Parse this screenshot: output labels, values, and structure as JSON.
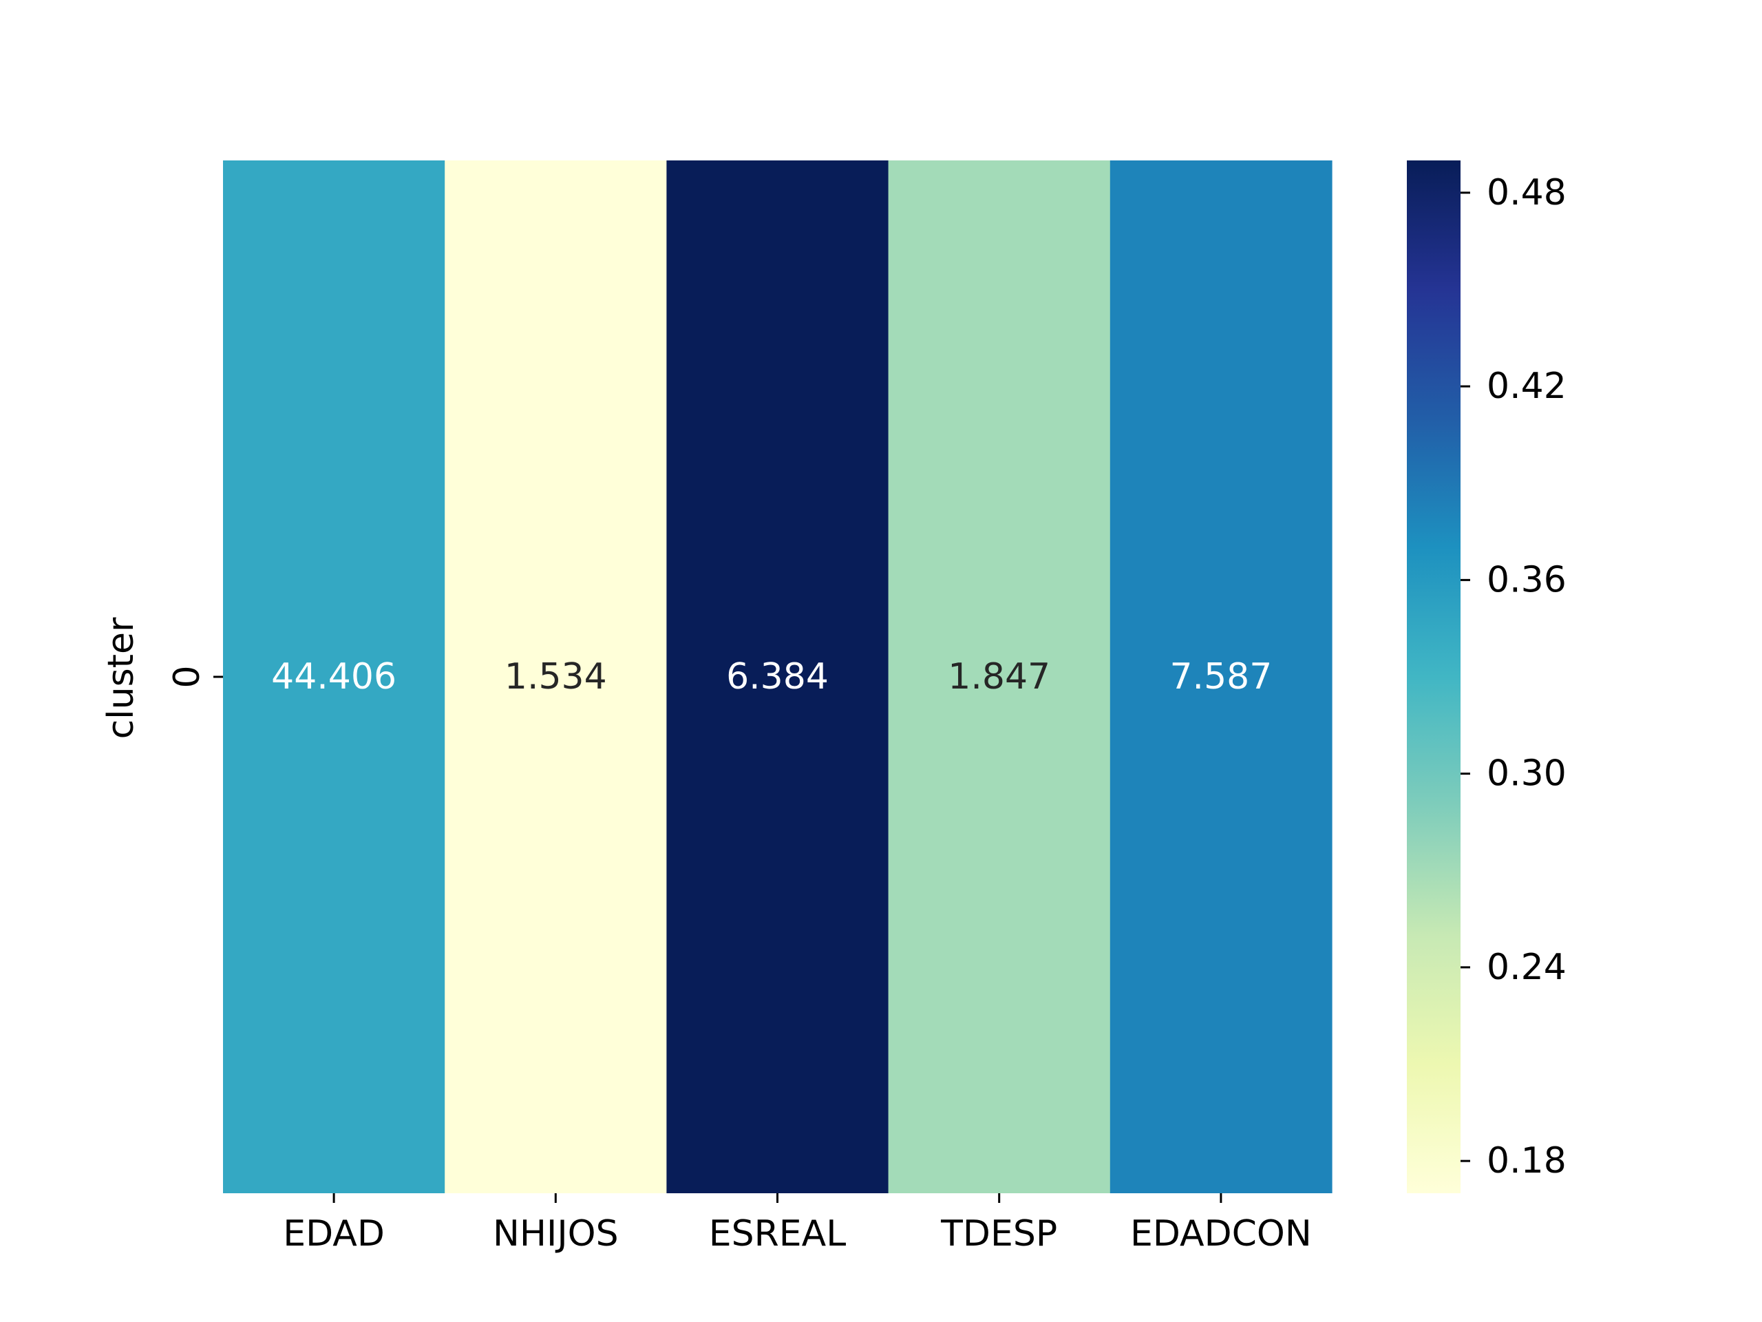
{
  "chart_data": {
    "type": "heatmap",
    "xlabel": "",
    "ylabel": "cluster",
    "x_categories": [
      "EDAD",
      "NHIJOS",
      "ESREAL",
      "TDESP",
      "EDADCON"
    ],
    "y_categories": [
      "0"
    ],
    "rows": [
      {
        "label": "0",
        "cells": [
          {
            "column": "EDAD",
            "annotation": "44.406",
            "color_value": 0.345
          },
          {
            "column": "NHIJOS",
            "annotation": "1.534",
            "color_value": 0.17
          },
          {
            "column": "ESREAL",
            "annotation": "6.384",
            "color_value": 0.49
          },
          {
            "column": "TDESP",
            "annotation": "1.847",
            "color_value": 0.27
          },
          {
            "column": "EDADCON",
            "annotation": "7.587",
            "color_value": 0.38
          }
        ]
      }
    ],
    "colorbar": {
      "colormap": "YlGnBu",
      "range": [
        0.17,
        0.49
      ],
      "ticks": [
        0.18,
        0.24,
        0.3,
        0.36,
        0.42,
        0.48
      ],
      "tick_labels": [
        "0.18",
        "0.24",
        "0.30",
        "0.36",
        "0.42",
        "0.48"
      ]
    },
    "annotation_colors": {
      "on_dark": "#ffffff",
      "on_light": "#262626"
    }
  }
}
